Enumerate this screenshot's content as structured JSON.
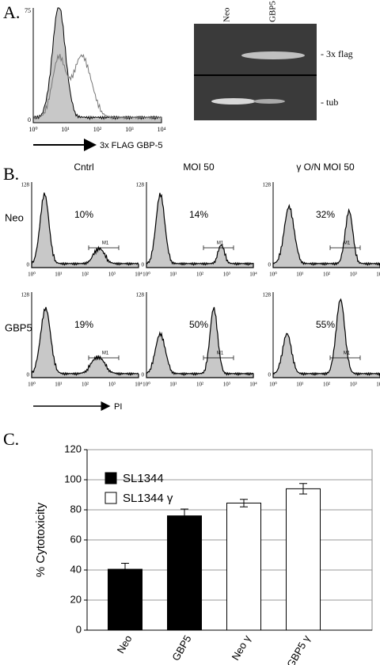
{
  "panel_a": {
    "label": "A.",
    "histogram": {
      "yticks": [
        "0",
        "75"
      ],
      "xticks": [
        "10⁰",
        "10¹",
        "10²",
        "10³",
        "10⁴"
      ],
      "xlabel": "3x FLAG GBP-5"
    },
    "blot": {
      "lanes": [
        "Neo",
        "GBP5"
      ],
      "bands": [
        "- 3x flag",
        "- tub"
      ]
    }
  },
  "panel_b": {
    "label": "B.",
    "columns": [
      "Cntrl",
      "MOI 50",
      "γ O/N MOI 50"
    ],
    "rows": [
      {
        "label": "Neo",
        "percents": [
          "10%",
          "14%",
          "32%"
        ]
      },
      {
        "label": "GBP5",
        "percents": [
          "19%",
          "50%",
          "55%"
        ]
      }
    ],
    "gate": "M1",
    "yticks": [
      "0",
      "128"
    ],
    "xticks": [
      "10⁰",
      "10¹",
      "10²",
      "10³",
      "10⁴"
    ],
    "xlabel": "PI"
  },
  "chart_data": {
    "type": "bar",
    "panel_label": "C.",
    "y_label": "% Cytotoxicity",
    "categories": [
      "Neo",
      "GBP5",
      "Neo γ",
      "GBP5 γ"
    ],
    "series": [
      {
        "name": "SL1344",
        "color": "#000000",
        "values": [
          40.5,
          76,
          null,
          null
        ],
        "errors": [
          4,
          4.5,
          null,
          null
        ]
      },
      {
        "name": "SL1344 γ",
        "color": "#ffffff",
        "values": [
          null,
          null,
          84.5,
          94
        ],
        "errors": [
          null,
          null,
          2.5,
          3.5
        ]
      }
    ],
    "ylim": [
      0,
      120
    ],
    "yticks": [
      0,
      20,
      40,
      60,
      80,
      100,
      120
    ],
    "grid": true
  }
}
